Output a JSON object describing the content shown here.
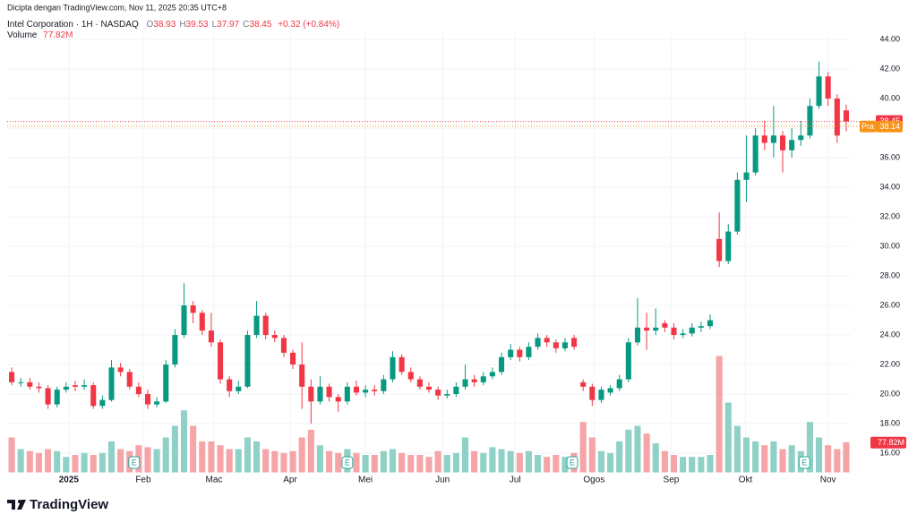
{
  "credit": "Dicipta dengan TradingView.com, Nov 11, 2025 20:35 UTC+8",
  "logo": "TradingView",
  "chart_data": {
    "type": "candlestick",
    "title": "Intel Corporation · 1H · NASDAQ",
    "ohlc_header": [
      [
        "O",
        "38.93"
      ],
      [
        "H",
        "39.53"
      ],
      [
        "L",
        "37.97"
      ],
      [
        "C",
        "38.45"
      ]
    ],
    "change": "+0.32 (+0.84%)",
    "volume_title": "Volume",
    "volume_label": "77.82M",
    "up_color": "#089981",
    "down_color": "#f23645",
    "volume_up_color": "#8fd1c6",
    "volume_down_color": "#f5a4a7",
    "ylim": [
      14.7,
      44.55
    ],
    "yticks": [
      {
        "value": 16,
        "label": "16.00"
      },
      {
        "value": 18,
        "label": "18.00"
      },
      {
        "value": 20,
        "label": "20.00"
      },
      {
        "value": 22,
        "label": "22.00"
      },
      {
        "value": 24,
        "label": "24.00"
      },
      {
        "value": 26,
        "label": "26.00"
      },
      {
        "value": 28,
        "label": "28.00"
      },
      {
        "value": 30,
        "label": "30.00"
      },
      {
        "value": 32,
        "label": "32.00"
      },
      {
        "value": 34,
        "label": "34.00"
      },
      {
        "value": 36,
        "label": "36.00"
      },
      {
        "value": 38,
        "label": "38.00"
      },
      {
        "value": 40,
        "label": "40.00"
      },
      {
        "value": 42,
        "label": "42.00"
      },
      {
        "value": 44,
        "label": "44.00"
      }
    ],
    "xlim": [
      0,
      93
    ],
    "xticks": [
      {
        "value": 6.8,
        "label": "2025"
      },
      {
        "value": 15,
        "label": "Feb"
      },
      {
        "value": 22.8,
        "label": "Mac"
      },
      {
        "value": 31.2,
        "label": "Apr"
      },
      {
        "value": 39.5,
        "label": "Mei"
      },
      {
        "value": 48,
        "label": "Jun"
      },
      {
        "value": 56,
        "label": "Jul"
      },
      {
        "value": 64.7,
        "label": "Ogos"
      },
      {
        "value": 73.2,
        "label": "Sep"
      },
      {
        "value": 81.4,
        "label": "Okt"
      },
      {
        "value": 90.5,
        "label": "Nov"
      }
    ],
    "grid": true,
    "last_price": 38.45,
    "premarket_tag": "Pra",
    "premarket_price": 38.14,
    "premarket_color": "#f7931a",
    "earnings": [
      "E",
      "E",
      "E",
      "E"
    ],
    "open": [
      21.5,
      20.8,
      20.8,
      20.5,
      20.4,
      19.3,
      20.3,
      20.6,
      20.5,
      20.6,
      19.2,
      19.6,
      21.8,
      21.5,
      20.5,
      20.0,
      19.3,
      19.5,
      22.0,
      24.0,
      26.0,
      25.5,
      24.3,
      23.5,
      21.0,
      20.2,
      20.5,
      24.0,
      25.3,
      24.0,
      23.8,
      22.8,
      22.0,
      20.5,
      19.5,
      20.5,
      19.8,
      19.5,
      20.5,
      20.1,
      20.3,
      20.2,
      21.0,
      22.5,
      21.5,
      21.0,
      20.5,
      20.3,
      19.9,
      20.0,
      20.5,
      21.0,
      20.8,
      21.2,
      21.5,
      22.5,
      23.0,
      22.5,
      23.2,
      23.8,
      23.5,
      23.1,
      23.8,
      20.8,
      20.5,
      19.6,
      20.1,
      20.4,
      21.0,
      23.5,
      24.5,
      24.3,
      24.8,
      24.5,
      24.0,
      24.1,
      24.5,
      24.6,
      30.5,
      29.0,
      31.0,
      34.5,
      35.0,
      37.5,
      37.0,
      37.5,
      36.5,
      37.2,
      37.5,
      39.5,
      41.5,
      40.0,
      39.2
    ],
    "high": [
      21.8,
      21.1,
      21.1,
      20.8,
      20.6,
      20.5,
      20.8,
      20.9,
      21.0,
      20.8,
      19.9,
      22.3,
      22.1,
      21.7,
      20.8,
      20.3,
      19.8,
      22.3,
      24.4,
      27.5,
      26.3,
      25.7,
      25.5,
      23.7,
      21.2,
      20.9,
      24.3,
      26.3,
      25.5,
      24.3,
      24.0,
      23.0,
      23.5,
      21.0,
      21.2,
      20.7,
      20.0,
      20.8,
      20.9,
      20.6,
      20.6,
      21.3,
      22.9,
      22.7,
      21.8,
      21.2,
      20.8,
      20.5,
      20.3,
      20.8,
      22.0,
      21.3,
      21.5,
      21.8,
      22.8,
      23.4,
      23.2,
      23.5,
      24.1,
      24.0,
      23.7,
      23.8,
      24.0,
      21.0,
      20.7,
      20.5,
      20.6,
      21.3,
      23.8,
      26.5,
      25.5,
      25.8,
      25.0,
      24.8,
      24.4,
      24.8,
      24.9,
      25.4,
      32.3,
      31.5,
      35.0,
      37.5,
      38.0,
      38.5,
      39.5,
      37.8,
      38.0,
      38.5,
      40.0,
      42.5,
      41.8,
      40.3,
      39.6
    ],
    "low": [
      20.6,
      20.5,
      20.3,
      20.1,
      19.0,
      19.1,
      20.1,
      20.2,
      20.3,
      19.0,
      19.0,
      19.5,
      21.2,
      20.3,
      19.8,
      19.0,
      19.1,
      19.4,
      21.8,
      23.8,
      24.8,
      24.0,
      23.2,
      20.7,
      19.8,
      20.0,
      20.4,
      23.8,
      23.7,
      23.5,
      22.5,
      21.7,
      19.0,
      18.0,
      19.3,
      19.5,
      18.8,
      19.3,
      19.9,
      19.8,
      19.9,
      20.0,
      20.8,
      21.3,
      20.8,
      20.3,
      20.1,
      19.6,
      19.7,
      19.8,
      20.3,
      20.5,
      20.6,
      21.0,
      21.3,
      22.3,
      22.2,
      22.3,
      23.0,
      23.2,
      22.8,
      22.9,
      23.0,
      20.2,
      19.2,
      19.4,
      19.9,
      20.2,
      20.8,
      23.3,
      23.0,
      24.0,
      24.2,
      23.7,
      23.8,
      23.9,
      24.2,
      24.4,
      28.6,
      28.8,
      30.8,
      33.0,
      34.8,
      36.5,
      36.0,
      35.0,
      36.0,
      36.8,
      37.3,
      39.3,
      39.5,
      37.0,
      37.8
    ],
    "close": [
      20.8,
      20.8,
      20.5,
      20.4,
      19.3,
      20.3,
      20.5,
      20.5,
      20.6,
      19.2,
      19.6,
      21.8,
      21.5,
      20.5,
      20.0,
      19.3,
      19.5,
      22.0,
      24.0,
      26.0,
      25.5,
      24.3,
      23.5,
      21.0,
      20.2,
      20.5,
      24.0,
      25.3,
      24.0,
      23.8,
      22.8,
      22.0,
      20.5,
      19.5,
      20.5,
      19.8,
      19.5,
      20.5,
      20.1,
      20.3,
      20.2,
      21.0,
      22.5,
      21.5,
      21.0,
      20.5,
      20.3,
      19.9,
      20.0,
      20.5,
      21.0,
      20.8,
      21.2,
      21.5,
      22.5,
      23.0,
      22.5,
      23.2,
      23.8,
      23.5,
      23.1,
      23.5,
      23.2,
      20.5,
      19.6,
      20.3,
      20.4,
      21.0,
      23.5,
      24.5,
      24.3,
      24.5,
      24.5,
      24.0,
      24.1,
      24.5,
      24.6,
      25.0,
      29.0,
      31.0,
      34.5,
      35.0,
      37.5,
      37.0,
      37.5,
      36.5,
      37.2,
      37.5,
      39.5,
      41.5,
      40.0,
      37.5,
      38.45
    ],
    "volume": [
      90,
      60,
      55,
      50,
      60,
      55,
      40,
      45,
      50,
      45,
      50,
      80,
      60,
      55,
      70,
      65,
      60,
      90,
      120,
      160,
      120,
      80,
      80,
      70,
      60,
      60,
      90,
      80,
      60,
      55,
      50,
      55,
      90,
      110,
      70,
      55,
      50,
      60,
      50,
      45,
      45,
      55,
      60,
      50,
      45,
      45,
      40,
      55,
      45,
      50,
      90,
      55,
      50,
      65,
      60,
      55,
      50,
      55,
      45,
      40,
      45,
      40,
      50,
      130,
      90,
      55,
      50,
      80,
      110,
      120,
      100,
      75,
      55,
      45,
      40,
      40,
      40,
      45,
      300,
      180,
      120,
      90,
      80,
      70,
      80,
      60,
      70,
      55,
      130,
      90,
      70,
      60,
      77.82
    ]
  }
}
